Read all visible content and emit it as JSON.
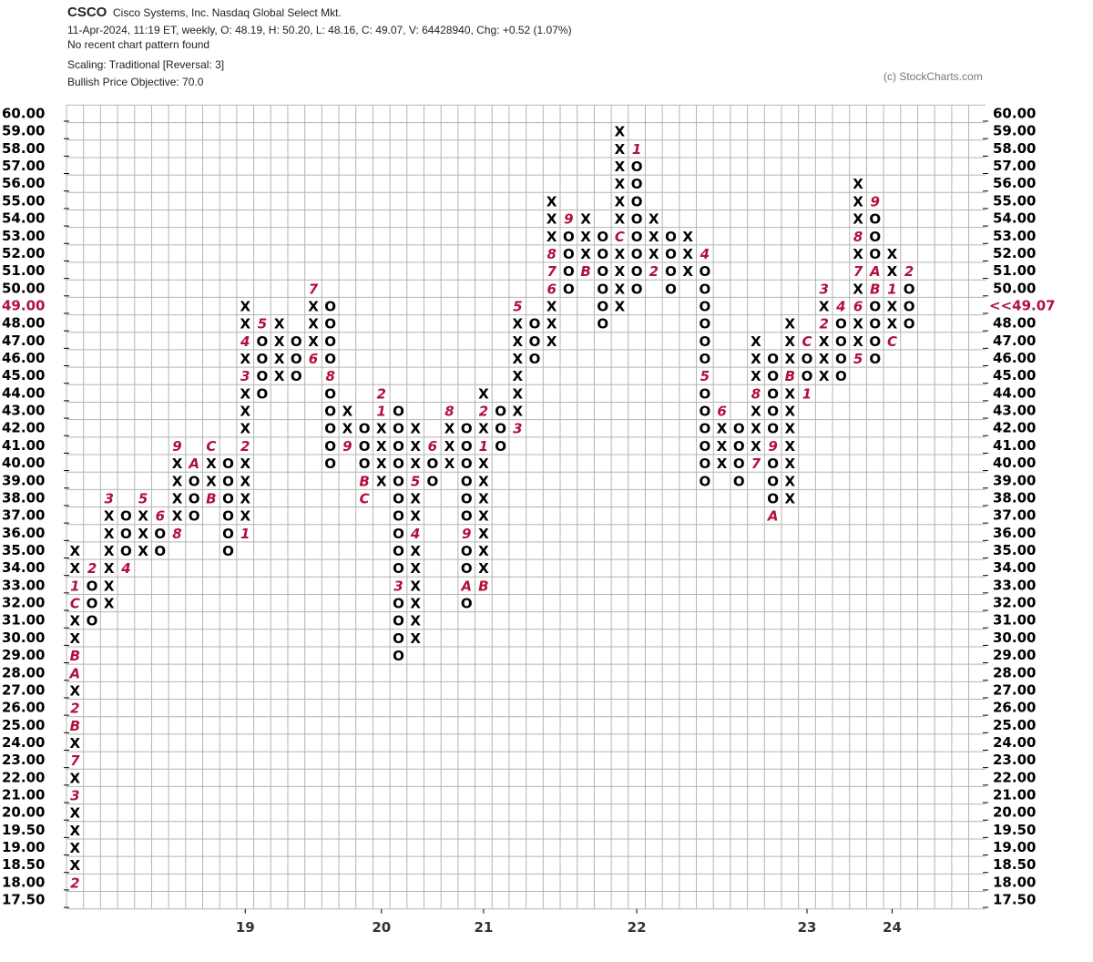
{
  "chart_data": {
    "type": "point-and-figure",
    "symbol": "CSCO",
    "name": "Cisco Systems, Inc.  Nasdaq Global Select Mkt.",
    "quote": "11-Apr-2024, 11:19 ET, weekly, O: 48.19, H: 50.20, L: 48.16, C: 49.07, V: 64428940, Chg: +0.52 (1.07%)",
    "pattern": "No recent chart pattern found",
    "scaling": "Scaling: Traditional [Reversal: 3]",
    "objective": "Bullish Price Objective: 70.0",
    "credit": "(c) StockCharts.com",
    "last_price": 49.07,
    "last_price_label": "<<49.07",
    "box_color": "#000000",
    "month_color": "#b0103a",
    "grid": true,
    "ylim": [
      17.5,
      60
    ],
    "yticks": [
      {
        "value": 60,
        "label": "60.00"
      },
      {
        "value": 59,
        "label": "59.00"
      },
      {
        "value": 58,
        "label": "58.00"
      },
      {
        "value": 57,
        "label": "57.00"
      },
      {
        "value": 56,
        "label": "56.00"
      },
      {
        "value": 55,
        "label": "55.00"
      },
      {
        "value": 54,
        "label": "54.00"
      },
      {
        "value": 53,
        "label": "53.00"
      },
      {
        "value": 52,
        "label": "52.00"
      },
      {
        "value": 51,
        "label": "51.00"
      },
      {
        "value": 50,
        "label": "50.00"
      },
      {
        "value": 49,
        "label": "49.00"
      },
      {
        "value": 48,
        "label": "48.00"
      },
      {
        "value": 47,
        "label": "47.00"
      },
      {
        "value": 46,
        "label": "46.00"
      },
      {
        "value": 45,
        "label": "45.00"
      },
      {
        "value": 44,
        "label": "44.00"
      },
      {
        "value": 43,
        "label": "43.00"
      },
      {
        "value": 42,
        "label": "42.00"
      },
      {
        "value": 41,
        "label": "41.00"
      },
      {
        "value": 40,
        "label": "40.00"
      },
      {
        "value": 39,
        "label": "39.00"
      },
      {
        "value": 38,
        "label": "38.00"
      },
      {
        "value": 37,
        "label": "37.00"
      },
      {
        "value": 36,
        "label": "36.00"
      },
      {
        "value": 35,
        "label": "35.00"
      },
      {
        "value": 34,
        "label": "34.00"
      },
      {
        "value": 33,
        "label": "33.00"
      },
      {
        "value": 32,
        "label": "32.00"
      },
      {
        "value": 31,
        "label": "31.00"
      },
      {
        "value": 30,
        "label": "30.00"
      },
      {
        "value": 29,
        "label": "29.00"
      },
      {
        "value": 28,
        "label": "28.00"
      },
      {
        "value": 27,
        "label": "27.00"
      },
      {
        "value": 26,
        "label": "26.00"
      },
      {
        "value": 25,
        "label": "25.00"
      },
      {
        "value": 24,
        "label": "24.00"
      },
      {
        "value": 23,
        "label": "23.00"
      },
      {
        "value": 22,
        "label": "22.00"
      },
      {
        "value": 21,
        "label": "21.00"
      },
      {
        "value": 20,
        "label": "20.00"
      },
      {
        "value": 19.5,
        "label": "19.50"
      },
      {
        "value": 19,
        "label": "19.00"
      },
      {
        "value": 18.5,
        "label": "18.50"
      },
      {
        "value": 18,
        "label": "18.00"
      },
      {
        "value": 17.5,
        "label": "17.50"
      }
    ],
    "categories": [
      null,
      null,
      null,
      null,
      null,
      null,
      null,
      null,
      null,
      null,
      "19",
      null,
      null,
      null,
      null,
      null,
      null,
      null,
      "20",
      null,
      null,
      null,
      null,
      null,
      "21",
      null,
      null,
      null,
      null,
      null,
      null,
      null,
      null,
      "22",
      null,
      null,
      null,
      null,
      null,
      null,
      null,
      null,
      null,
      "23",
      null,
      null,
      null,
      null,
      "24",
      null
    ],
    "columns": [
      {
        "bottom": 18,
        "marks": [
          "2",
          "X",
          "X",
          "X",
          "X",
          "3",
          "X",
          "7",
          "X",
          "B",
          "2",
          "X",
          "A",
          "B",
          "X",
          "X",
          "C",
          "1",
          "X",
          "X"
        ]
      },
      {
        "bottom": 31,
        "marks": [
          "O",
          "O",
          "O",
          "2"
        ]
      },
      {
        "bottom": 32,
        "marks": [
          "X",
          "X",
          "X",
          "X",
          "X",
          "X",
          "3"
        ]
      },
      {
        "bottom": 34,
        "marks": [
          "4",
          "O",
          "O",
          "O"
        ]
      },
      {
        "bottom": 35,
        "marks": [
          "X",
          "X",
          "X",
          "5"
        ]
      },
      {
        "bottom": 35,
        "marks": [
          "O",
          "O",
          "6"
        ]
      },
      {
        "bottom": 36,
        "marks": [
          "8",
          "X",
          "X",
          "X",
          "X",
          "9"
        ]
      },
      {
        "bottom": 37,
        "marks": [
          "O",
          "O",
          "O",
          "A"
        ]
      },
      {
        "bottom": 38,
        "marks": [
          "B",
          "X",
          "X",
          "C"
        ]
      },
      {
        "bottom": 35,
        "marks": [
          "O",
          "O",
          "O",
          "O",
          "O",
          "O"
        ]
      },
      {
        "bottom": 36,
        "marks": [
          "1",
          "X",
          "X",
          "X",
          "X",
          "2",
          "X",
          "X",
          "X",
          "3",
          "X",
          "4",
          "X",
          "X"
        ]
      },
      {
        "bottom": 44,
        "marks": [
          "O",
          "O",
          "O",
          "O",
          "5"
        ]
      },
      {
        "bottom": 45,
        "marks": [
          "X",
          "X",
          "X",
          "X"
        ]
      },
      {
        "bottom": 45,
        "marks": [
          "O",
          "O",
          "O"
        ]
      },
      {
        "bottom": 46,
        "marks": [
          "6",
          "X",
          "X",
          "X",
          "7"
        ]
      },
      {
        "bottom": 40,
        "marks": [
          "O",
          "O",
          "O",
          "O",
          "O",
          "8",
          "O",
          "O",
          "O",
          "O"
        ]
      },
      {
        "bottom": 41,
        "marks": [
          "9",
          "X",
          "X"
        ]
      },
      {
        "bottom": 38,
        "marks": [
          "C",
          "B",
          "O",
          "O",
          "O"
        ]
      },
      {
        "bottom": 39,
        "marks": [
          "X",
          "X",
          "X",
          "X",
          "1",
          "2"
        ]
      },
      {
        "bottom": 29,
        "marks": [
          "O",
          "O",
          "O",
          "O",
          "3",
          "O",
          "O",
          "O",
          "O",
          "O",
          "O",
          "O",
          "O",
          "O",
          "O"
        ]
      },
      {
        "bottom": 30,
        "marks": [
          "X",
          "X",
          "X",
          "X",
          "X",
          "X",
          "4",
          "X",
          "X",
          "5",
          "X",
          "X",
          "X"
        ]
      },
      {
        "bottom": 39,
        "marks": [
          "O",
          "O",
          "6"
        ]
      },
      {
        "bottom": 40,
        "marks": [
          "X",
          "X",
          "X",
          "8"
        ]
      },
      {
        "bottom": 32,
        "marks": [
          "O",
          "A",
          "O",
          "O",
          "9",
          "O",
          "O",
          "O",
          "O",
          "O",
          "O"
        ]
      },
      {
        "bottom": 33,
        "marks": [
          "B",
          "X",
          "X",
          "X",
          "X",
          "X",
          "X",
          "X",
          "1",
          "X",
          "2",
          "X"
        ]
      },
      {
        "bottom": 41,
        "marks": [
          "O",
          "O",
          "O"
        ]
      },
      {
        "bottom": 42,
        "marks": [
          "3",
          "X",
          "X",
          "X",
          "X",
          "X",
          "X",
          "5"
        ]
      },
      {
        "bottom": 46,
        "marks": [
          "O",
          "O",
          "O"
        ]
      },
      {
        "bottom": 47,
        "marks": [
          "X",
          "X",
          "X",
          "6",
          "7",
          "8",
          "X",
          "X",
          "X"
        ]
      },
      {
        "bottom": 50,
        "marks": [
          "O",
          "O",
          "O",
          "O",
          "9"
        ]
      },
      {
        "bottom": 51,
        "marks": [
          "B",
          "X",
          "X",
          "X"
        ]
      },
      {
        "bottom": 48,
        "marks": [
          "O",
          "O",
          "O",
          "O",
          "O",
          "O"
        ]
      },
      {
        "bottom": 49,
        "marks": [
          "X",
          "X",
          "X",
          "X",
          "C",
          "X",
          "X",
          "X",
          "X",
          "X",
          "X"
        ]
      },
      {
        "bottom": 50,
        "marks": [
          "O",
          "O",
          "O",
          "O",
          "O",
          "O",
          "O",
          "O",
          "1"
        ]
      },
      {
        "bottom": 51,
        "marks": [
          "2",
          "X",
          "X",
          "X"
        ]
      },
      {
        "bottom": 50,
        "marks": [
          "O",
          "O",
          "O",
          "O"
        ]
      },
      {
        "bottom": 51,
        "marks": [
          "X",
          "X",
          "X"
        ]
      },
      {
        "bottom": 39,
        "marks": [
          "O",
          "O",
          "O",
          "O",
          "O",
          "O",
          "5",
          "O",
          "O",
          "O",
          "O",
          "O",
          "O",
          "4"
        ]
      },
      {
        "bottom": 40,
        "marks": [
          "X",
          "X",
          "X",
          "6"
        ]
      },
      {
        "bottom": 39,
        "marks": [
          "O",
          "O",
          "O",
          "O"
        ]
      },
      {
        "bottom": 40,
        "marks": [
          "7",
          "X",
          "X",
          "X",
          "8",
          "X",
          "X",
          "X"
        ]
      },
      {
        "bottom": 37,
        "marks": [
          "A",
          "O",
          "O",
          "O",
          "9",
          "O",
          "O",
          "O",
          "O",
          "O"
        ]
      },
      {
        "bottom": 38,
        "marks": [
          "X",
          "X",
          "X",
          "X",
          "X",
          "X",
          "X",
          "B",
          "X",
          "X",
          "X"
        ]
      },
      {
        "bottom": 44,
        "marks": [
          "1",
          "O",
          "O",
          "C"
        ]
      },
      {
        "bottom": 45,
        "marks": [
          "X",
          "X",
          "X",
          "2",
          "X",
          "3"
        ]
      },
      {
        "bottom": 45,
        "marks": [
          "O",
          "O",
          "O",
          "O",
          "4"
        ]
      },
      {
        "bottom": 46,
        "marks": [
          "5",
          "X",
          "X",
          "6",
          "X",
          "7",
          "X",
          "8",
          "X",
          "X",
          "X"
        ]
      },
      {
        "bottom": 46,
        "marks": [
          "O",
          "O",
          "O",
          "O",
          "B",
          "A",
          "O",
          "O",
          "O",
          "9"
        ]
      },
      {
        "bottom": 47,
        "marks": [
          "C",
          "X",
          "X",
          "1",
          "X",
          "X"
        ]
      },
      {
        "bottom": 48,
        "marks": [
          "O",
          "O",
          "O",
          "2"
        ]
      }
    ]
  }
}
